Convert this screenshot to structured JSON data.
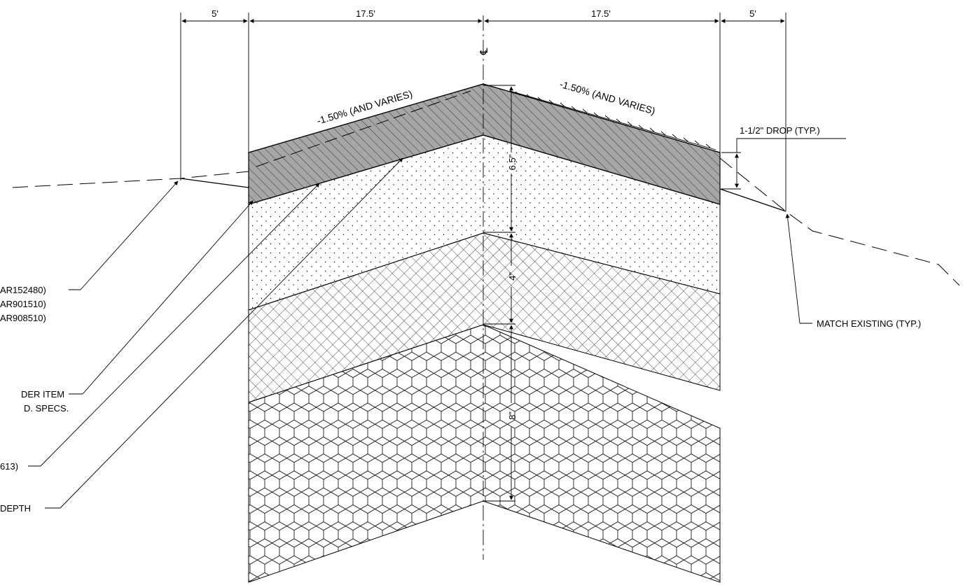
{
  "dimensions": {
    "left_shoulder": "5'",
    "left_lane": "17.5'",
    "right_lane": "17.5'",
    "right_shoulder": "5'"
  },
  "depths": {
    "surface": "6.5\"",
    "base": "4\"",
    "subbase": "8\""
  },
  "centerline_symbol": "℄",
  "slopes": {
    "left": "-1.50% (AND VARIES)",
    "right": "-1.50% (AND VARIES)"
  },
  "callouts": {
    "drop": "1-1/2\" DROP (TYP.)",
    "match_existing": "MATCH EXISTING (TYP.)",
    "left_labels": [
      "AR152480)",
      "AR901510)",
      "AR908510)",
      "DER ITEM",
      "D. SPECS.",
      "613)",
      "DEPTH"
    ]
  },
  "colors": {
    "line": "#000000",
    "asphalt_fill": "#a6a6a6",
    "background": "#ffffff"
  }
}
